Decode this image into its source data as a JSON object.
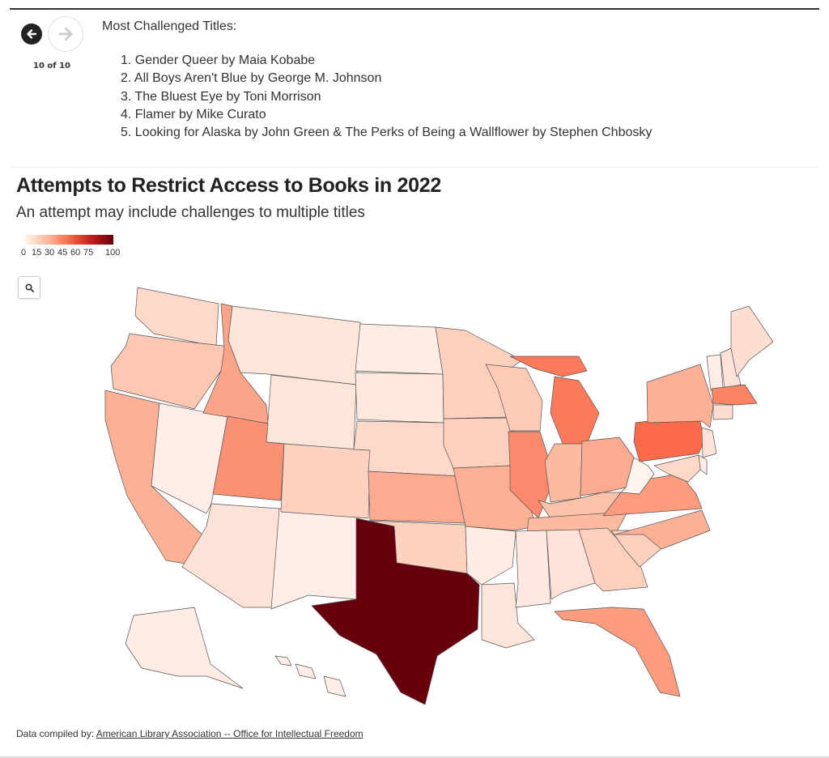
{
  "slides": {
    "counter": "10 of 10",
    "heading": "Most Challenged Titles:",
    "items": [
      "1. Gender Queer by Maia Kobabe",
      "2. All Boys Aren't Blue by George M. Johnson",
      "3. The Bluest Eye by Toni Morrison",
      "4. Flamer by Mike Curato",
      "5. Looking for Alaska by John Green & The Perks of Being a Wallflower by Stephen Chbosky"
    ]
  },
  "map": {
    "title": "Attempts to Restrict Access to Books in 2022",
    "subtitle": "An attempt may include challenges to multiple titles",
    "legend_ticks": [
      "0",
      "15",
      "30",
      "45",
      "60",
      "75",
      "100"
    ],
    "legend_colors": [
      "#fff5f0",
      "#fcbba1",
      "#fb6a4a",
      "#cb181d",
      "#67000d"
    ],
    "footer_prefix": "Data compiled by:",
    "footer_link": "American Library Association -- Office for Intellectual Freedom"
  },
  "chart_data": {
    "type": "choropleth",
    "scale": {
      "min": 0,
      "max": 100
    },
    "regions": [
      {
        "state": "WA",
        "value": 12
      },
      {
        "state": "OR",
        "value": 20
      },
      {
        "state": "CA",
        "value": 28
      },
      {
        "state": "NV",
        "value": 3
      },
      {
        "state": "ID",
        "value": 32
      },
      {
        "state": "MT",
        "value": 7
      },
      {
        "state": "WY",
        "value": 7
      },
      {
        "state": "UT",
        "value": 38
      },
      {
        "state": "AZ",
        "value": 8
      },
      {
        "state": "NM",
        "value": 3
      },
      {
        "state": "CO",
        "value": 15
      },
      {
        "state": "ND",
        "value": 4
      },
      {
        "state": "SD",
        "value": 6
      },
      {
        "state": "NE",
        "value": 12
      },
      {
        "state": "KS",
        "value": 30
      },
      {
        "state": "OK",
        "value": 15
      },
      {
        "state": "TX",
        "value": 100
      },
      {
        "state": "MN",
        "value": 16
      },
      {
        "state": "IA",
        "value": 16
      },
      {
        "state": "MO",
        "value": 28
      },
      {
        "state": "AR",
        "value": 4
      },
      {
        "state": "LA",
        "value": 7
      },
      {
        "state": "WI",
        "value": 18
      },
      {
        "state": "IL",
        "value": 40
      },
      {
        "state": "MI",
        "value": 45
      },
      {
        "state": "IN",
        "value": 25
      },
      {
        "state": "OH",
        "value": 30
      },
      {
        "state": "KY",
        "value": 22
      },
      {
        "state": "TN",
        "value": 25
      },
      {
        "state": "MS",
        "value": 5
      },
      {
        "state": "AL",
        "value": 8
      },
      {
        "state": "GA",
        "value": 16
      },
      {
        "state": "FL",
        "value": 35
      },
      {
        "state": "SC",
        "value": 16
      },
      {
        "state": "NC",
        "value": 28
      },
      {
        "state": "VA",
        "value": 35
      },
      {
        "state": "WV",
        "value": 1
      },
      {
        "state": "PA",
        "value": 50
      },
      {
        "state": "NY",
        "value": 28
      },
      {
        "state": "VT",
        "value": 3
      },
      {
        "state": "NH",
        "value": 8
      },
      {
        "state": "ME",
        "value": 10
      },
      {
        "state": "MA",
        "value": 42
      },
      {
        "state": "CT",
        "value": 10
      },
      {
        "state": "NJ",
        "value": 8
      },
      {
        "state": "DE",
        "value": 3
      },
      {
        "state": "MD",
        "value": 12
      },
      {
        "state": "AK",
        "value": 4
      },
      {
        "state": "HI",
        "value": 3
      }
    ]
  }
}
